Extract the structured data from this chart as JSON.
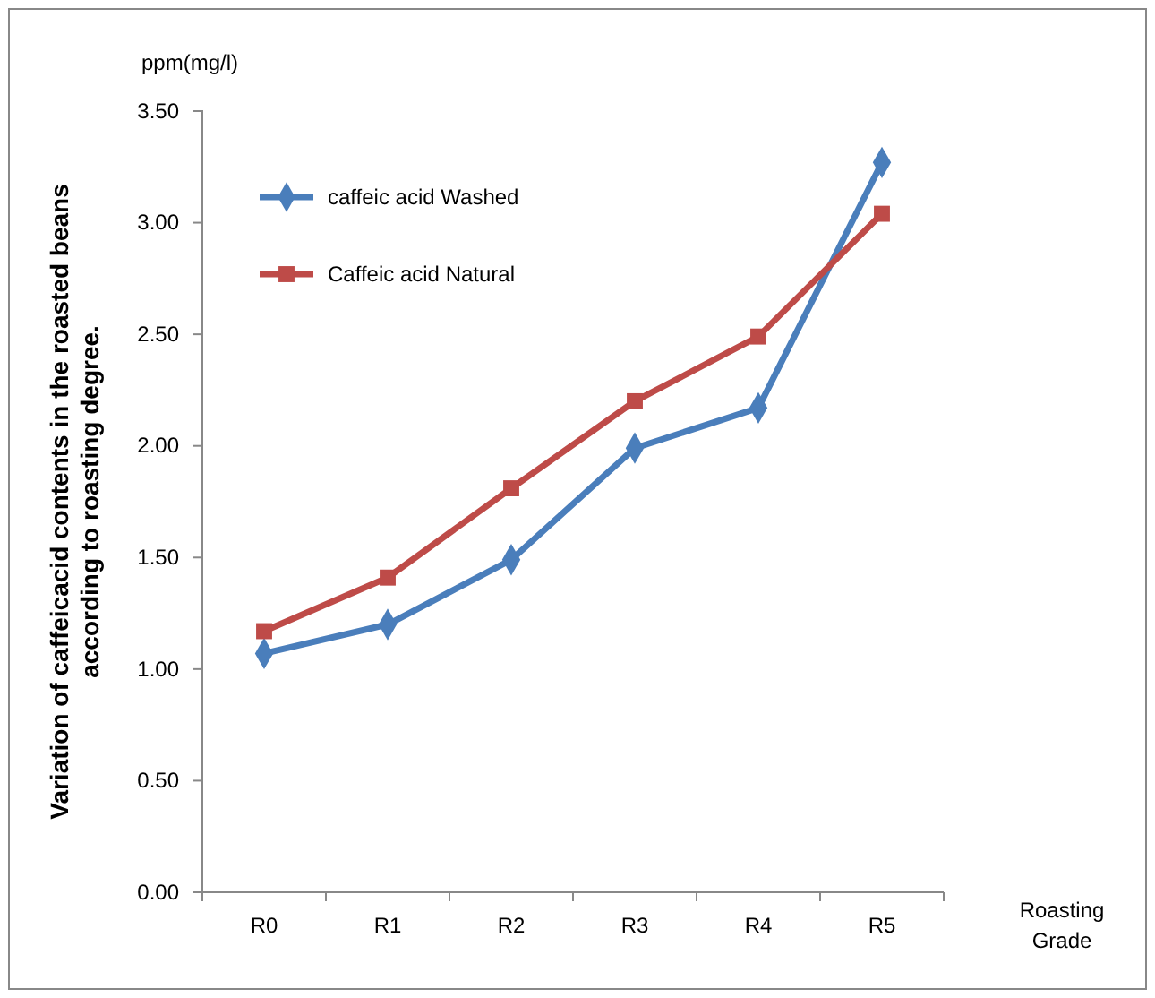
{
  "chart_data": {
    "type": "line",
    "ylabel": "Variation of caffeicacid contents in the roasted beans according to roasting degree.",
    "xlabel": "Roasting Grade",
    "annotations": [
      "ppm(mg/l)"
    ],
    "categories": [
      "R0",
      "R1",
      "R2",
      "R3",
      "R4",
      "R5"
    ],
    "series": [
      {
        "name": "caffeic acid Washed",
        "color": "#4a7ebb",
        "marker": "diamond",
        "values": [
          1.07,
          1.2,
          1.49,
          1.99,
          2.17,
          3.27
        ]
      },
      {
        "name": "Caffeic acid Natural",
        "color": "#be4b48",
        "marker": "square",
        "values": [
          1.17,
          1.41,
          1.81,
          2.2,
          2.49,
          3.04
        ]
      }
    ],
    "ylim": [
      0,
      3.5
    ],
    "yticks": [
      {
        "value": 0,
        "label": "0.00"
      },
      {
        "value": 0.5,
        "label": "0.50"
      },
      {
        "value": 1,
        "label": "1.00"
      },
      {
        "value": 1.5,
        "label": "1.50"
      },
      {
        "value": 2,
        "label": "2.00"
      },
      {
        "value": 2.5,
        "label": "2.50"
      },
      {
        "value": 3,
        "label": "3.00"
      },
      {
        "value": 3.5,
        "label": "3.50"
      }
    ],
    "grid": false,
    "legend": "top left",
    "line_style": "solid"
  }
}
